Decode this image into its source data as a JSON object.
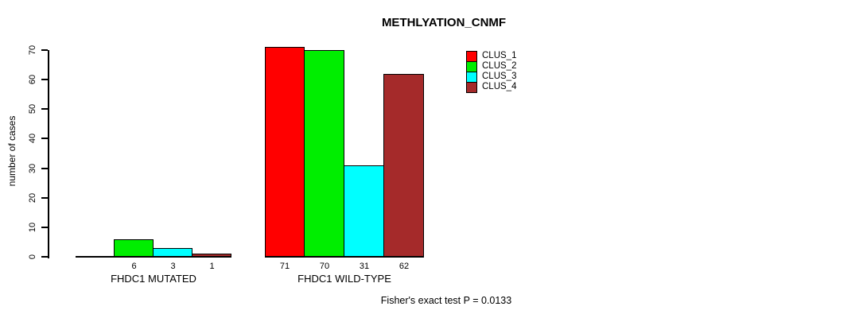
{
  "chart_data": {
    "type": "bar",
    "title": "METHLYATION_CNMF",
    "ylabel": "number of cases",
    "xlabel": "",
    "ylim": [
      0,
      70
    ],
    "yticks": [
      0,
      10,
      20,
      30,
      40,
      50,
      60,
      70
    ],
    "grid": false,
    "legend_position": "top-right",
    "series": [
      {
        "name": "CLUS_1",
        "color": "#FF0000"
      },
      {
        "name": "CLUS_2",
        "color": "#00EE00"
      },
      {
        "name": "CLUS_3",
        "color": "#00FFFF"
      },
      {
        "name": "CLUS_4",
        "color": "#A52A2A"
      }
    ],
    "groups": [
      {
        "label": "FHDC1 MUTATED",
        "values": [
          0,
          6,
          3,
          1
        ],
        "bar_labels": [
          "",
          "6",
          "3",
          "1"
        ]
      },
      {
        "label": "FHDC1 WILD-TYPE",
        "values": [
          71,
          70,
          31,
          62
        ],
        "bar_labels": [
          "71",
          "70",
          "31",
          "62"
        ]
      }
    ],
    "annotation": "Fisher's exact test P = 0.0133"
  }
}
